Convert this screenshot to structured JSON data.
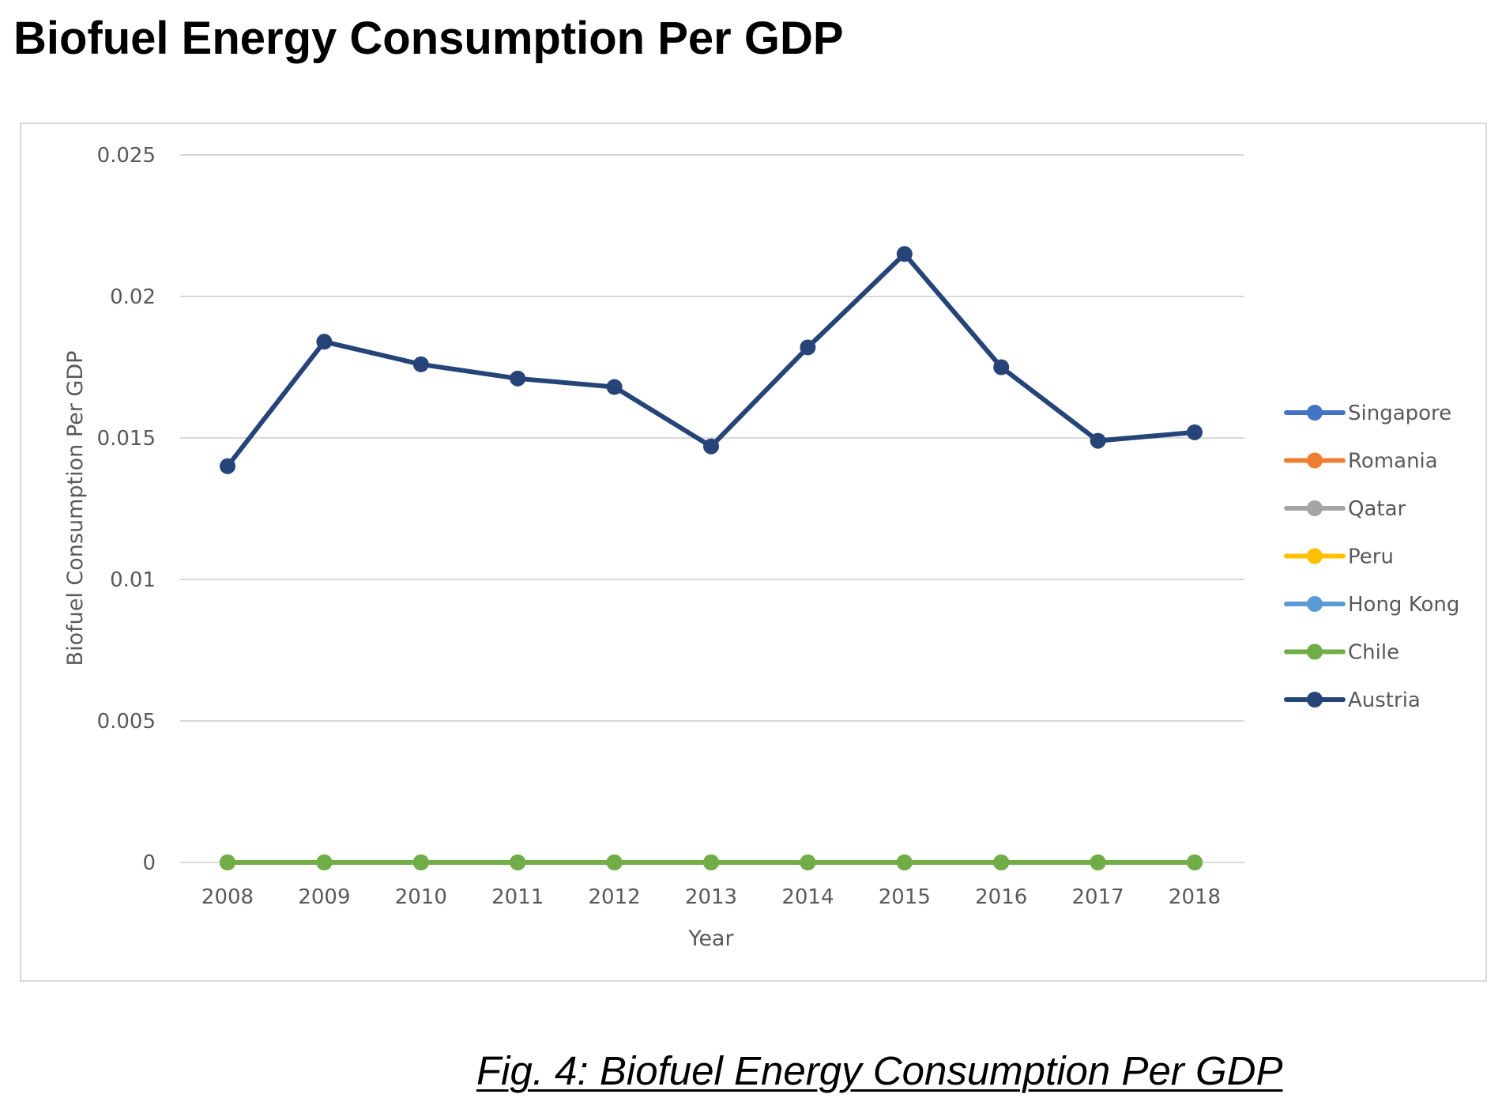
{
  "heading": "Biofuel Energy Consumption Per GDP",
  "caption": "Fig. 4: Biofuel Energy Consumption Per GDP",
  "chart_data": {
    "type": "line",
    "title": "",
    "xlabel": "Year",
    "ylabel": "Biofuel Consumption Per GDP",
    "ylim": [
      0,
      0.025
    ],
    "yticks": [
      "0",
      "0.005",
      "0.01",
      "0.015",
      "0.02",
      "0.025"
    ],
    "ytick_values": [
      0,
      0.005,
      0.01,
      0.015,
      0.02,
      0.025
    ],
    "categories": [
      "2008",
      "2009",
      "2010",
      "2011",
      "2012",
      "2013",
      "2014",
      "2015",
      "2016",
      "2017",
      "2018"
    ],
    "grid": true,
    "legend_position": "right",
    "series": [
      {
        "name": "Singapore",
        "color": "#4472c4",
        "values": [
          0,
          0,
          0,
          0,
          0,
          0,
          0,
          0,
          0,
          0,
          0
        ]
      },
      {
        "name": "Romania",
        "color": "#ed7d31",
        "values": [
          0,
          0,
          0,
          0,
          0,
          0,
          0,
          0,
          0,
          0,
          0
        ]
      },
      {
        "name": "Qatar",
        "color": "#a5a5a5",
        "values": [
          0,
          0,
          0,
          0,
          0,
          0,
          0,
          0,
          0,
          0,
          0
        ]
      },
      {
        "name": "Peru",
        "color": "#ffc000",
        "values": [
          0,
          0,
          0,
          0,
          0,
          0,
          0,
          0,
          0,
          0,
          0
        ]
      },
      {
        "name": "Hong Kong",
        "color": "#5b9bd5",
        "values": [
          0,
          0,
          0,
          0,
          0,
          0,
          0,
          0,
          0,
          0,
          0
        ]
      },
      {
        "name": "Chile",
        "color": "#70ad47",
        "values": [
          0,
          0,
          0,
          0,
          0,
          0,
          0,
          0,
          0,
          0,
          0
        ]
      },
      {
        "name": "Austria",
        "color": "#264478",
        "values": [
          0.014,
          0.0184,
          0.0176,
          0.0171,
          0.0168,
          0.0147,
          0.0182,
          0.0215,
          0.0175,
          0.0149,
          0.0152
        ]
      }
    ]
  }
}
